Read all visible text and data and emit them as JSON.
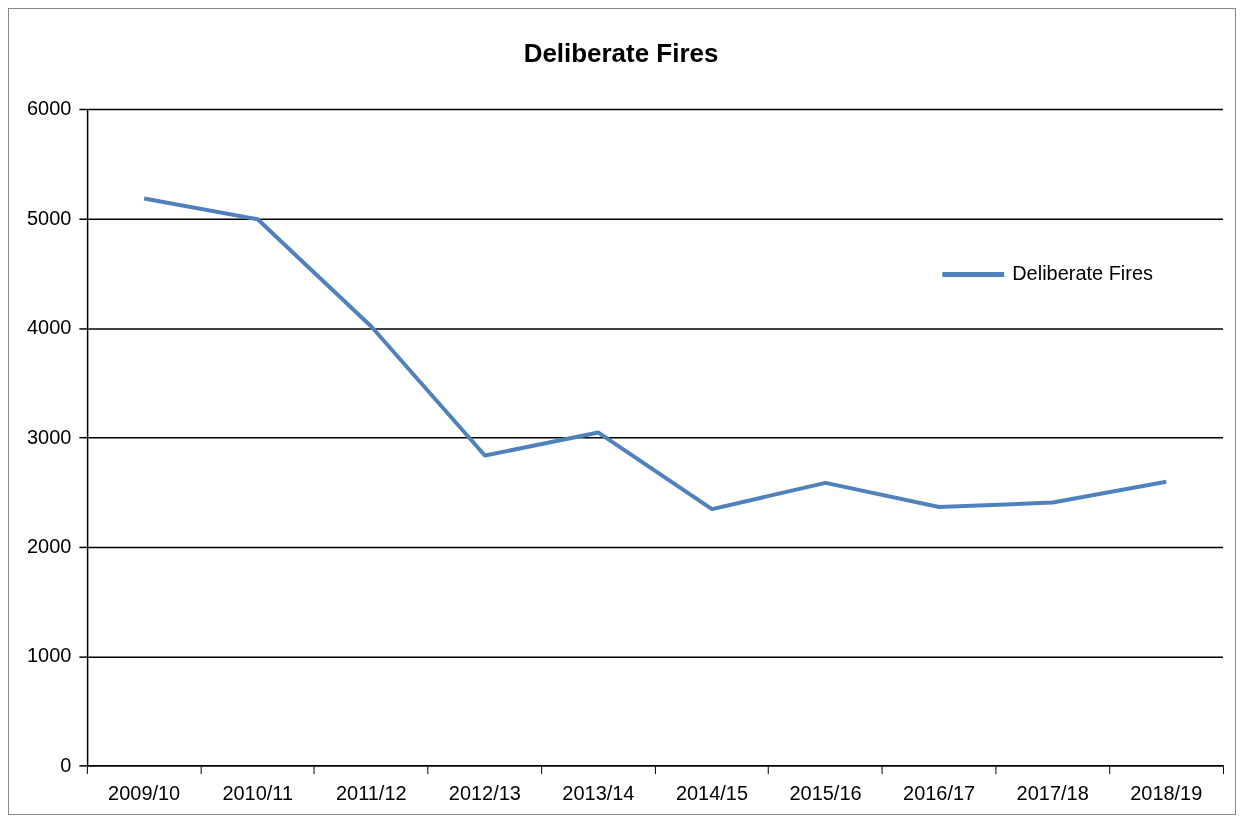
{
  "chart_data": {
    "type": "line",
    "title": "Deliberate Fires",
    "categories": [
      "2009/10",
      "2010/11",
      "2011/12",
      "2012/13",
      "2013/14",
      "2014/15",
      "2015/16",
      "2016/17",
      "2017/18",
      "2018/19"
    ],
    "series": [
      {
        "name": "Deliberate Fires",
        "color": "#4f81bd",
        "values": [
          5190,
          5000,
          4020,
          2840,
          3050,
          2350,
          2590,
          2370,
          2410,
          2600
        ]
      }
    ],
    "ylim": [
      0,
      6000
    ],
    "yticks": [
      0,
      1000,
      2000,
      3000,
      4000,
      5000,
      6000
    ],
    "grid": "y",
    "legend": "top right",
    "marker": "none"
  }
}
